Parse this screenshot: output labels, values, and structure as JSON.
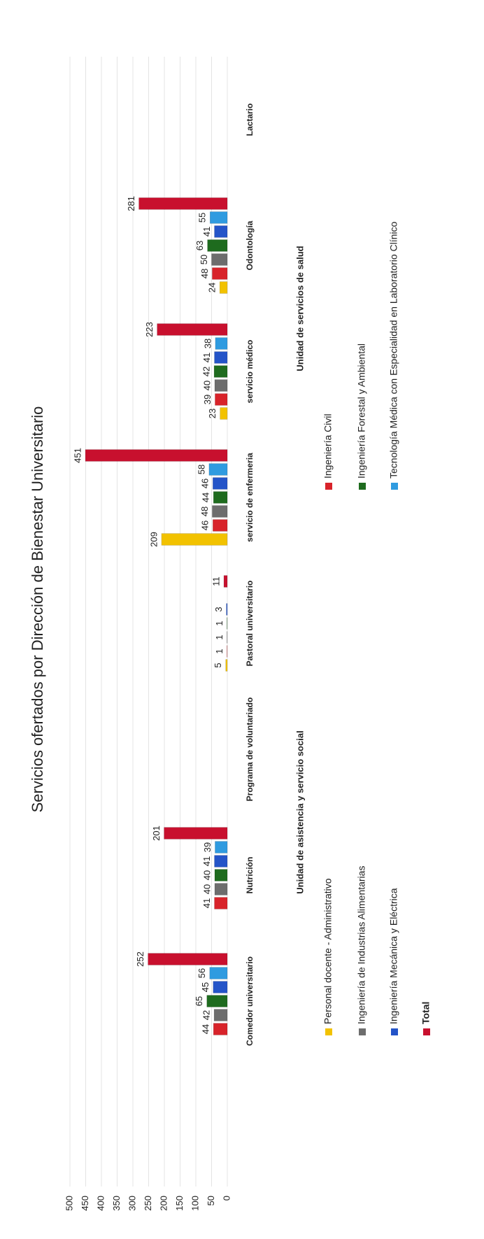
{
  "chart_data": {
    "type": "bar",
    "title": "Servicios ofertados por Dirección de Bienestar Universitario",
    "categories": [
      "Comedor universitario",
      "Nutrición",
      "Programa de voluntariado",
      "Pastoral universitario",
      "servicio de enfermeria",
      "servicio médico",
      "Odontología",
      "Lactario"
    ],
    "groups": [
      {
        "label": "Unidad de asistencia y servicio social",
        "from": 0,
        "to": 3
      },
      {
        "label": "Unidad de servicios de salud",
        "from": 4,
        "to": 7
      }
    ],
    "series": [
      {
        "name": "Personal docente - Administrativo",
        "color": "#f2c200",
        "values": [
          null,
          null,
          null,
          5,
          209,
          23,
          24,
          null
        ]
      },
      {
        "name": "Ingeniería Civil",
        "color": "#d8232a",
        "values": [
          44,
          41,
          null,
          1,
          46,
          39,
          48,
          null
        ]
      },
      {
        "name": "Ingeniería de Industrias Alimentarias",
        "color": "#6d6d6d",
        "values": [
          42,
          40,
          null,
          1,
          48,
          40,
          50,
          null
        ]
      },
      {
        "name": "Ingeniería Forestal y  Ambiental",
        "color": "#1e6b1e",
        "values": [
          65,
          40,
          null,
          1,
          44,
          42,
          63,
          null
        ]
      },
      {
        "name": "Ingeniería Mecánica y    Eléctrica",
        "color": "#2454c8",
        "values": [
          45,
          41,
          null,
          3,
          46,
          41,
          41,
          null
        ]
      },
      {
        "name": "Tecnología Médica  con Especialidad  en        Laboratorio Clínico",
        "color": "#2f9be0",
        "values": [
          56,
          39,
          null,
          null,
          58,
          38,
          55,
          null
        ]
      },
      {
        "name": "Total",
        "color": "#c8102e",
        "values": [
          252,
          201,
          null,
          11,
          451,
          223,
          281,
          null
        ]
      }
    ],
    "ylim": [
      0,
      500
    ],
    "yticks": [
      0,
      50,
      100,
      150,
      200,
      250,
      300,
      350,
      400,
      450,
      500
    ],
    "grid": true,
    "legend": "bottom"
  }
}
